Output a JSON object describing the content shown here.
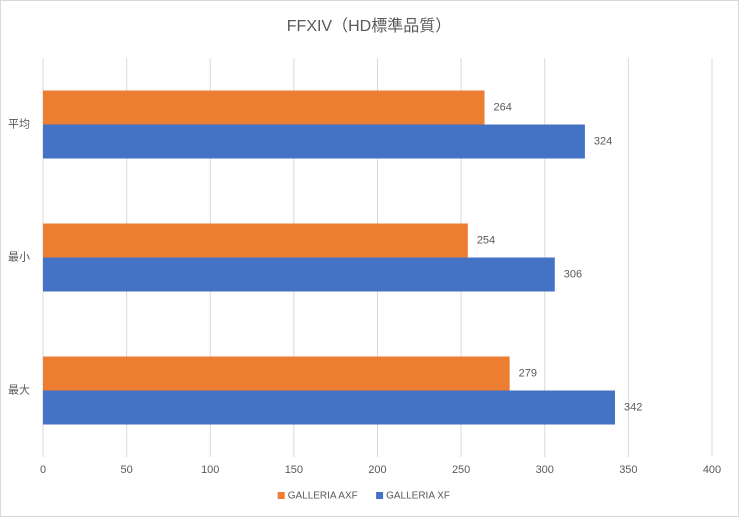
{
  "chart_data": {
    "type": "bar",
    "orientation": "horizontal",
    "title": "FFXIV（HD標準品質）",
    "categories": [
      "平均",
      "最小",
      "最大"
    ],
    "series": [
      {
        "name": "GALLERIA AXF",
        "color": "#ed7d31",
        "values": [
          264,
          254,
          279
        ]
      },
      {
        "name": "GALLERIA XF",
        "color": "#4472c4",
        "values": [
          324,
          306,
          342
        ]
      }
    ],
    "xlim": [
      0,
      400
    ],
    "xticks": [
      0,
      50,
      100,
      150,
      200,
      250,
      300,
      350,
      400
    ],
    "grid": true,
    "legend": "bottom"
  }
}
